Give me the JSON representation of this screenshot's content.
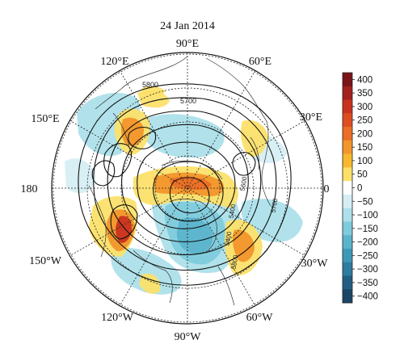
{
  "title": "24 Jan 2014",
  "longitude_labels": {
    "e90": "90°E",
    "e120": "120°E",
    "e60": "60°E",
    "e150": "150°E",
    "e30": "30°E",
    "lon180": "180",
    "lon0": "0",
    "w150": "150°W",
    "w30": "30°W",
    "w120": "120°W",
    "w60": "60°W",
    "w90": "90°W"
  },
  "contour_labels": {
    "c5800": "5800",
    "c5700": "5700",
    "c5600": "5600",
    "c5400a": "5400",
    "c5700b": "5700",
    "c5400b": "5400",
    "c5800b": "5800"
  },
  "colorbar": {
    "labels": [
      "400",
      "350",
      "300",
      "250",
      "200",
      "150",
      "100",
      "50",
      "0",
      "−50",
      "−100",
      "−150",
      "−200",
      "−250",
      "−300",
      "−350",
      "−400"
    ],
    "colors": [
      "#7a1418",
      "#a3201d",
      "#c8331f",
      "#de4d22",
      "#ea6e26",
      "#f2952b",
      "#f7b82f",
      "#fbe06a",
      "#ffffff",
      "#d6eef3",
      "#ade0ea",
      "#80cbdc",
      "#5bb4cc",
      "#3e98b8",
      "#2e7c9f",
      "#235f82",
      "#1b4665"
    ]
  },
  "colors": {
    "positive_strong": "#c8331f",
    "positive_mid": "#f2952b",
    "positive_weak": "#fbe06a",
    "negative_weak": "#ade0ea",
    "negative_mid": "#5bb4cc",
    "contour": "#111111"
  }
}
